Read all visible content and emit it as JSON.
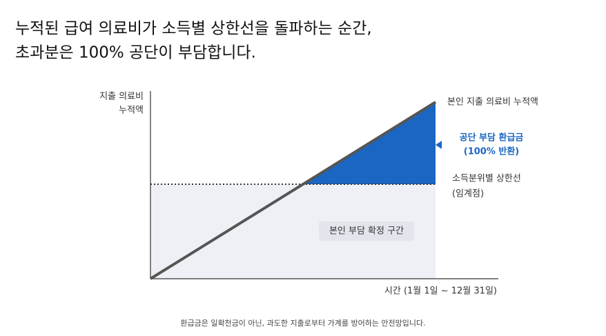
{
  "header": {
    "title_lines": [
      "누적된 급여 의료비가 소득별 상한선을 돌파하는 순간,",
      "초과분은 100% 공단이 부담합니다."
    ]
  },
  "diagram": {
    "y_axis_label_lines": [
      "지출 의료비",
      "누적액"
    ],
    "x_axis_label": "시간 (1월 1일 ~ 12월 31일)",
    "line_label": "본인 지출 의료비 누적액",
    "refund_label_lines": [
      "공단 부담 환급금",
      "(100% 반환)"
    ],
    "threshold_label_lines": [
      "소득분위별 상한선",
      "(임계점)"
    ],
    "zone_label": "본인 부담 확정 구간"
  },
  "footer": {
    "note": "환급금은 일확천금이 아닌, 과도한 지출로부터 가계를 방어하는 안전망입니다."
  }
}
